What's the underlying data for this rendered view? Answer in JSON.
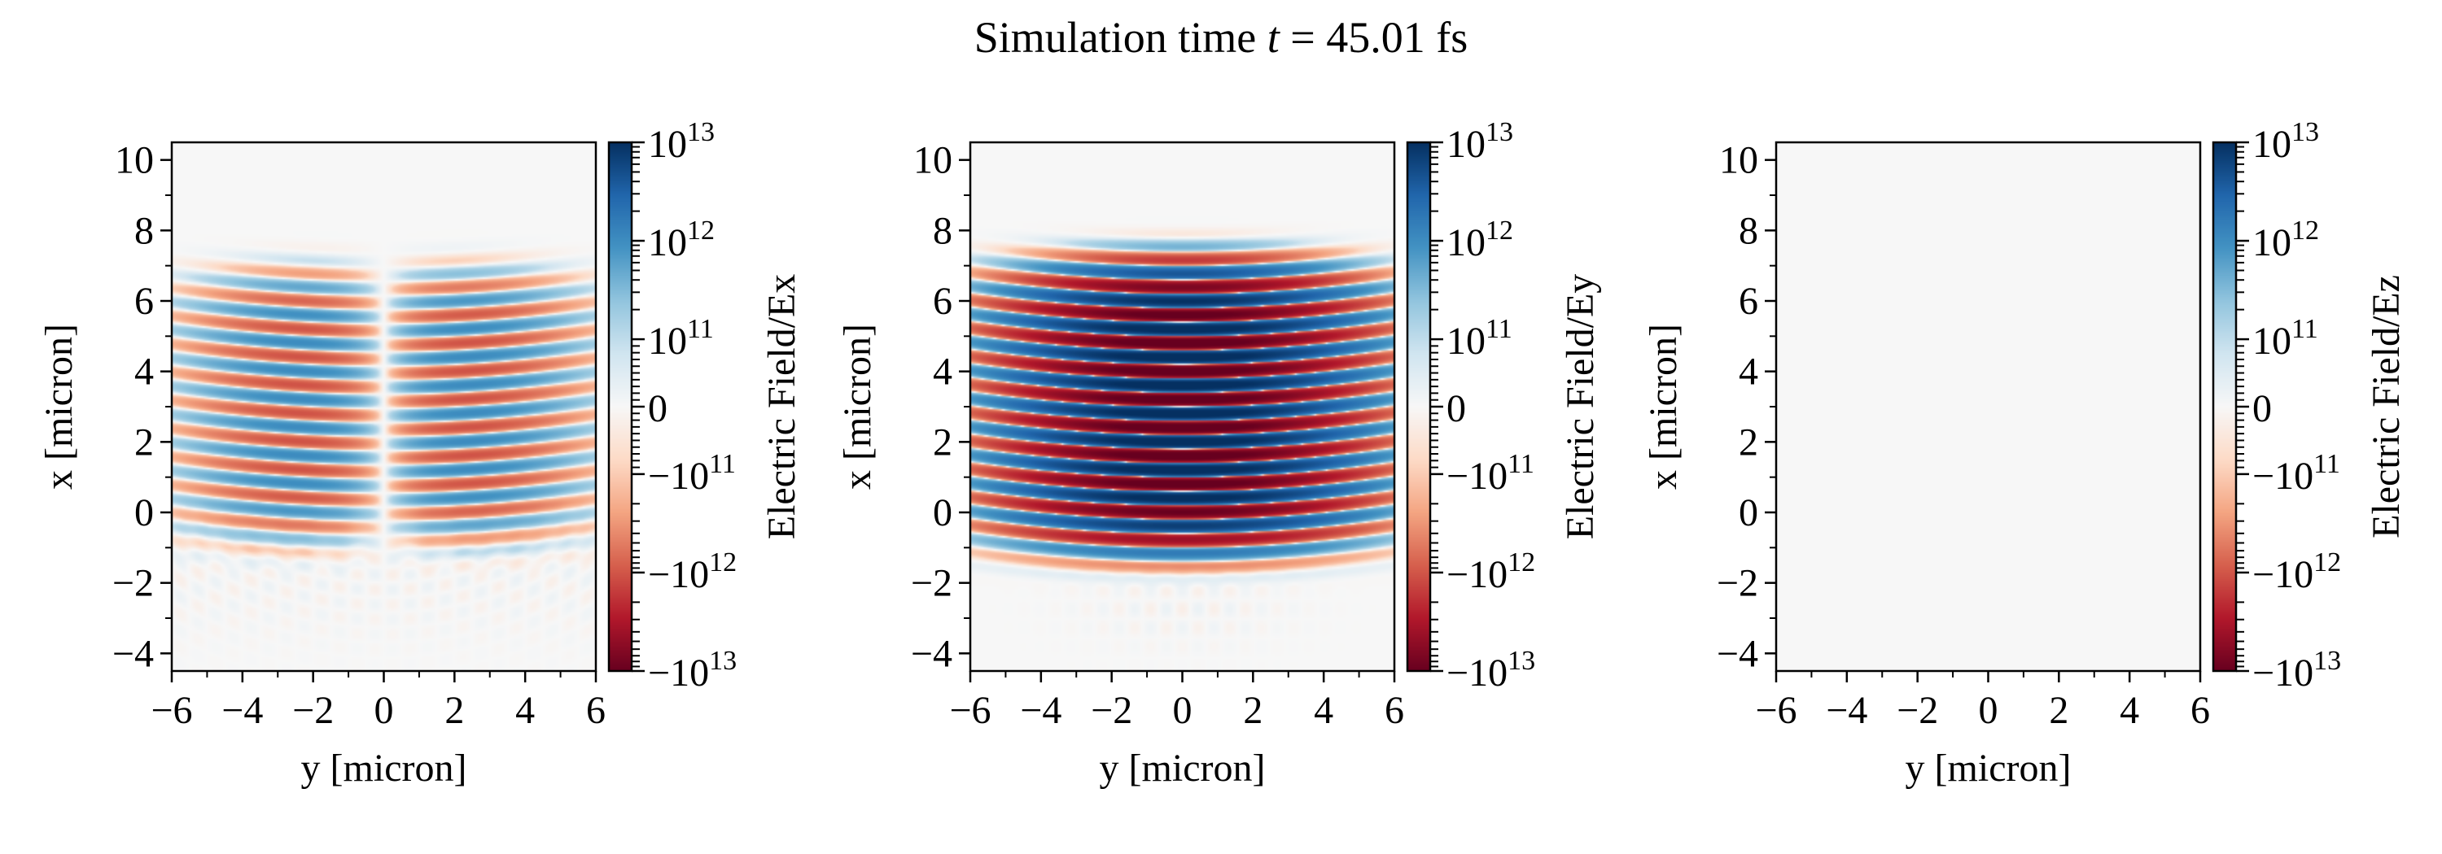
{
  "figure": {
    "title": {
      "prefix": "Simulation time ",
      "var": "t",
      "suffix": " = 45.01 fs"
    }
  },
  "chart_data": [
    {
      "type": "heatmap",
      "component": "Ex",
      "xlabel": "y [micron]",
      "ylabel": "x [micron]",
      "colorbar_label": "Electric Field/Ex",
      "xlim": [
        -6,
        6
      ],
      "ylim": [
        -4.5,
        10.5
      ],
      "xticks": [
        "−6",
        "−4",
        "−2",
        "0",
        "2",
        "4",
        "6"
      ],
      "yticks": [
        "−4",
        "−2",
        "0",
        "2",
        "4",
        "6",
        "8",
        "10"
      ],
      "colormap": "RdBu_r",
      "norm": "symlog",
      "clim": [
        -10000000000000.0,
        10000000000000.0
      ],
      "content": "antisymmetric fringes about y=0, peak ~1e12, faint diffraction below x=0"
    },
    {
      "type": "heatmap",
      "component": "Ey",
      "xlabel": "y [micron]",
      "ylabel": "x [micron]",
      "colorbar_label": "Electric Field/Ey",
      "xlim": [
        -6,
        6
      ],
      "ylim": [
        -4.5,
        10.5
      ],
      "xticks": [
        "−6",
        "−4",
        "−2",
        "0",
        "2",
        "4",
        "6"
      ],
      "yticks": [
        "−4",
        "−2",
        "0",
        "2",
        "4",
        "6",
        "8",
        "10"
      ],
      "colormap": "RdBu_r",
      "norm": "symlog",
      "clim": [
        -10000000000000.0,
        10000000000000.0
      ],
      "content": "laser pulse fringes from x≈-1 to x≈7, peak ~1e13"
    },
    {
      "type": "heatmap",
      "component": "Ez",
      "xlabel": "y [micron]",
      "ylabel": "x [micron]",
      "colorbar_label": "Electric Field/Ez",
      "xlim": [
        -6,
        6
      ],
      "ylim": [
        -4.5,
        10.5
      ],
      "xticks": [
        "−6",
        "−4",
        "−2",
        "0",
        "2",
        "4",
        "6"
      ],
      "yticks": [
        "−4",
        "−2",
        "0",
        "2",
        "4",
        "6",
        "8",
        "10"
      ],
      "colormap": "RdBu_r",
      "norm": "symlog",
      "clim": [
        -10000000000000.0,
        10000000000000.0
      ],
      "content": "zero everywhere"
    }
  ],
  "colorbar_ticks": [
    {
      "sign": "",
      "base": "10",
      "exp": "13",
      "value": 10000000000000.0
    },
    {
      "sign": "",
      "base": "10",
      "exp": "12",
      "value": 1000000000000.0
    },
    {
      "sign": "",
      "base": "10",
      "exp": "11",
      "value": 100000000000.0
    },
    {
      "sign": "",
      "base": "0",
      "exp": "",
      "value": 0
    },
    {
      "sign": "−",
      "base": "10",
      "exp": "11",
      "value": -100000000000.0
    },
    {
      "sign": "−",
      "base": "10",
      "exp": "12",
      "value": -1000000000000.0
    },
    {
      "sign": "−",
      "base": "10",
      "exp": "13",
      "value": -10000000000000.0
    }
  ],
  "colors": {
    "cmap_stops": [
      "#67001f",
      "#b2182b",
      "#d6604d",
      "#f4a582",
      "#fddbc7",
      "#f7f7f7",
      "#d1e5f0",
      "#92c5de",
      "#4393c3",
      "#2166ac",
      "#053061"
    ]
  }
}
